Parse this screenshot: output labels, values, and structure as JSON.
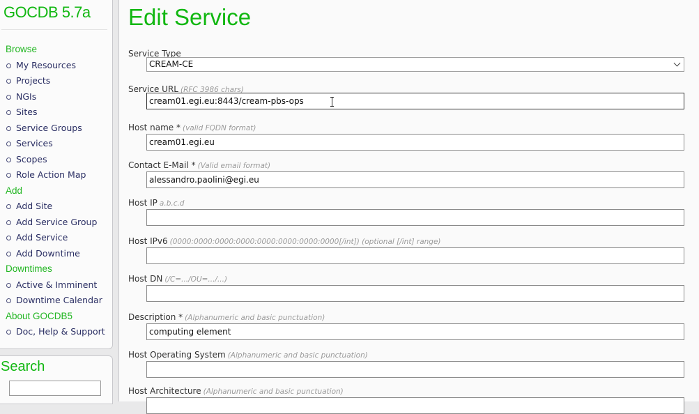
{
  "sidebar": {
    "brand": "GOCDB 5.7a",
    "sections": [
      {
        "title": "Browse",
        "items": [
          "My Resources",
          "Projects",
          "NGIs",
          "Sites",
          "Service Groups",
          "Services",
          "Scopes",
          "Role Action Map"
        ]
      },
      {
        "title": "Add",
        "items": [
          "Add Site",
          "Add Service Group",
          "Add Service",
          "Add Downtime"
        ]
      },
      {
        "title": "Downtimes",
        "items": [
          "Active & Imminent",
          "Downtime Calendar"
        ]
      },
      {
        "title": "About GOCDB5",
        "items": [
          "Doc, Help & Support"
        ]
      }
    ],
    "search_title": "Search"
  },
  "main": {
    "title": "Edit Service",
    "fields": [
      {
        "label": "Service Type",
        "hint": "",
        "value": "CREAM-CE",
        "type": "select"
      },
      {
        "label": "Service URL",
        "hint": "(RFC 3986 chars)",
        "value": "cream01.egi.eu:8443/cream-pbs-ops",
        "active": true
      },
      {
        "label": "Host name *",
        "hint": "(valid FQDN format)",
        "value": "cream01.egi.eu"
      },
      {
        "label": "Contact E-Mail *",
        "hint": "(Valid email format)",
        "value": "alessandro.paolini@egi.eu"
      },
      {
        "label": "Host IP",
        "hint": "a.b.c.d",
        "value": ""
      },
      {
        "label": "Host IPv6",
        "hint": "(0000:0000:0000:0000:0000:0000:0000:0000[/int]) (optional [/int] range)",
        "value": ""
      },
      {
        "label": "Host DN",
        "hint": "(/C=.../OU=.../...)",
        "value": ""
      },
      {
        "label": "Description *",
        "hint": "(Alphanumeric and basic punctuation)",
        "value": "computing element"
      },
      {
        "label": "Host Operating System",
        "hint": "(Alphanumeric and basic punctuation)",
        "value": ""
      },
      {
        "label": "Host Architecture",
        "hint": "(Alphanumeric and basic punctuation)",
        "value": ""
      }
    ]
  }
}
